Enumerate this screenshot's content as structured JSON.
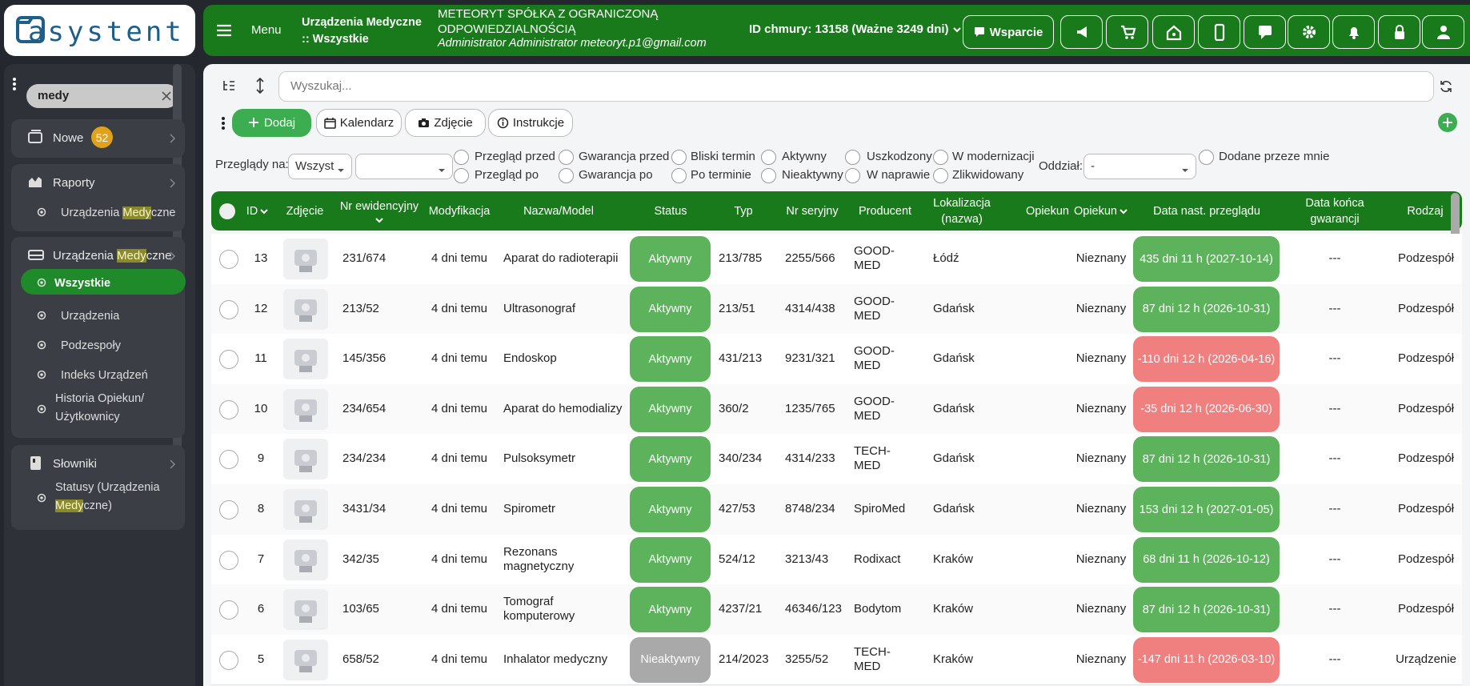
{
  "logo": "asystent",
  "header": {
    "menu": "Menu",
    "breadcrumb": "Urządzenia Medyczne :: Wszystkie",
    "company": "METEORYT SPÓŁKA Z OGRANICZONĄ ODPOWIEDZIALNOŚCIĄ",
    "user": "Administrator Administrator meteoryt.p1@gmail.com",
    "cloud": "ID chmury: 13158 (Ważne 3249 dni)",
    "support": "Wsparcie"
  },
  "sidebar": {
    "search": "medy",
    "groups": [
      {
        "label": [
          "Nowe"
        ],
        "badge": "52",
        "items": []
      },
      {
        "label": [
          "Raporty"
        ],
        "items": [
          {
            "label": [
              "Urządzenia ",
              "Medy",
              "czne"
            ]
          }
        ]
      },
      {
        "label": [
          "Urządzenia ",
          "Medy",
          "czne"
        ],
        "items": [
          {
            "label": [
              "Wszystkie"
            ],
            "active": true
          },
          {
            "label": [
              "Urządzenia"
            ]
          },
          {
            "label": [
              "Podzespoły"
            ]
          },
          {
            "label": [
              "Indeks Urządzeń"
            ]
          },
          {
            "label": [
              "Historia Opiekun/ Użytkownicy"
            ]
          }
        ]
      },
      {
        "label": [
          "Słowniki"
        ],
        "items": [
          {
            "label": [
              "Statusy (Urządzenia ",
              "Medy",
              "czne)"
            ]
          }
        ]
      }
    ]
  },
  "toolbar": {
    "search_placeholder": "Wyszukaj...",
    "buttons": [
      "Dodaj",
      "Kalendarz",
      "Zdjęcie",
      "Instrukcje"
    ]
  },
  "filters": {
    "reviews_label": "Przeglądy na:",
    "reviews_select": "Wszyst",
    "checkboxes": [
      [
        "Przegląd przed",
        "Przegląd po"
      ],
      [
        "Gwarancja przed",
        "Gwarancja po"
      ],
      [
        "Bliski termin",
        "Po terminie"
      ],
      [
        "Aktywny",
        "Nieaktywny"
      ],
      [
        "Uszkodzony",
        "W naprawie"
      ],
      [
        "W modernizacji",
        "Zlikwidowany"
      ]
    ],
    "branch_label": "Oddział:",
    "branch_select": "-",
    "mine": "Dodane przeze mnie"
  },
  "table": {
    "columns": [
      "ID",
      "Zdjęcie",
      "Nr ewidencyjny",
      "Modyfikacja",
      "Nazwa/Model",
      "Status",
      "Typ",
      "Nr seryjny",
      "Producent",
      "Lokalizacja (nazwa)",
      "Opiekun",
      "Opiekun",
      "Data nast. przeglądu",
      "Data końca gwarancji",
      "Rodzaj"
    ],
    "rows": [
      {
        "id": "13",
        "nr": "231/674",
        "modified": "4 dni temu",
        "name": "Aparat do radioterapii",
        "status": "Aktywny",
        "status_color": "#5cb35c",
        "type": "213/785",
        "serial": "2255/566",
        "producer": "GOOD-MED",
        "location": "Łódź",
        "keeper": "Nieznany",
        "review": "435 dni 11 h (2027-10-14)",
        "review_color": "#5cb35c",
        "warranty": "---",
        "kind": "Podzespół"
      },
      {
        "id": "12",
        "nr": "213/52",
        "modified": "4 dni temu",
        "name": "Ultrasonograf",
        "status": "Aktywny",
        "status_color": "#5cb35c",
        "type": "213/51",
        "serial": "4314/438",
        "producer": "GOOD-MED",
        "location": "Gdańsk",
        "keeper": "Nieznany",
        "review": "87 dni 12 h (2026-10-31)",
        "review_color": "#5cb35c",
        "warranty": "---",
        "kind": "Podzespół"
      },
      {
        "id": "11",
        "nr": "145/356",
        "modified": "4 dni temu",
        "name": "Endoskop",
        "status": "Aktywny",
        "status_color": "#5cb35c",
        "type": "431/213",
        "serial": "9231/321",
        "producer": "GOOD-MED",
        "location": "Gdańsk",
        "keeper": "Nieznany",
        "review": "-110 dni 12 h (2026-04-16)",
        "review_color": "#f07f7f",
        "warranty": "---",
        "kind": "Podzespół"
      },
      {
        "id": "10",
        "nr": "234/654",
        "modified": "4 dni temu",
        "name": "Aparat do hemodializy",
        "status": "Aktywny",
        "status_color": "#5cb35c",
        "type": "360/2",
        "serial": "1235/765",
        "producer": "GOOD-MED",
        "location": "Gdańsk",
        "keeper": "Nieznany",
        "review": "-35 dni 12 h (2026-06-30)",
        "review_color": "#f07f7f",
        "warranty": "---",
        "kind": "Podzespół"
      },
      {
        "id": "9",
        "nr": "234/234",
        "modified": "4 dni temu",
        "name": "Pulsoksymetr",
        "status": "Aktywny",
        "status_color": "#5cb35c",
        "type": "340/234",
        "serial": "4314/233",
        "producer": "TECH-MED",
        "location": "Gdańsk",
        "keeper": "Nieznany",
        "review": "87 dni 12 h (2026-10-31)",
        "review_color": "#5cb35c",
        "warranty": "---",
        "kind": "Podzespół"
      },
      {
        "id": "8",
        "nr": "3431/34",
        "modified": "4 dni temu",
        "name": "Spirometr",
        "status": "Aktywny",
        "status_color": "#5cb35c",
        "type": "427/53",
        "serial": "8748/234",
        "producer": "SpiroMed",
        "location": "Gdańsk",
        "keeper": "Nieznany",
        "review": "153 dni 12 h (2027-01-05)",
        "review_color": "#5cb35c",
        "warranty": "---",
        "kind": "Podzespół"
      },
      {
        "id": "7",
        "nr": "342/35",
        "modified": "4 dni temu",
        "name": "Rezonans magnetyczny",
        "status": "Aktywny",
        "status_color": "#5cb35c",
        "type": "524/12",
        "serial": "3213/43",
        "producer": "Rodixact",
        "location": "Kraków",
        "keeper": "Nieznany",
        "review": "68 dni 11 h (2026-10-12)",
        "review_color": "#5cb35c",
        "warranty": "---",
        "kind": "Podzespół"
      },
      {
        "id": "6",
        "nr": "103/65",
        "modified": "4 dni temu",
        "name": "Tomograf komputerowy",
        "status": "Aktywny",
        "status_color": "#5cb35c",
        "type": "4237/21",
        "serial": "46346/123",
        "producer": "Bodytom",
        "location": "Kraków",
        "keeper": "Nieznany",
        "review": "87 dni 12 h (2026-10-31)",
        "review_color": "#5cb35c",
        "warranty": "---",
        "kind": "Podzespół"
      },
      {
        "id": "5",
        "nr": "658/52",
        "modified": "4 dni temu",
        "name": "Inhalator medyczny",
        "status": "Nieaktywny",
        "status_color": "#a9a9a9",
        "type": "214/2023",
        "serial": "3255/52",
        "producer": "TECH-MED",
        "location": "Kraków",
        "keeper": "Nieznany",
        "review": "-147 dni 11 h (2026-03-10)",
        "review_color": "#f07f7f",
        "warranty": "---",
        "kind": "Urządzenie"
      }
    ]
  }
}
